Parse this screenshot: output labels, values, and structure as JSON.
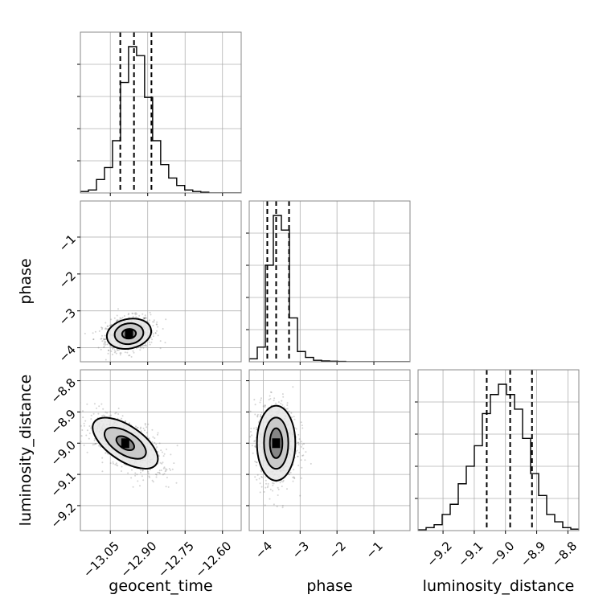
{
  "chart_data": {
    "type": "corner",
    "parameters": [
      "geocent_time",
      "phase",
      "luminosity_distance"
    ],
    "axis_labels": {
      "geocent_time": "geocent_time",
      "phase": "phase",
      "luminosity_distance": "luminosity_distance"
    },
    "ranges": {
      "geocent_time": [
        -13.17,
        -12.525
      ],
      "phase": [
        -4.38,
        -0.02
      ],
      "luminosity_distance": [
        -9.28,
        -8.765
      ]
    },
    "ticks": {
      "geocent_time": [
        -13.05,
        -12.9,
        -12.75,
        -12.6
      ],
      "phase": [
        -4,
        -3,
        -2,
        -1
      ],
      "luminosity_distance": [
        -9.2,
        -9.1,
        -9.0,
        -8.9,
        -8.8
      ]
    },
    "tick_labels": {
      "geocent_time": [
        "−13.05",
        "−12.90",
        "−12.75",
        "−12.60"
      ],
      "phase": [
        "−4",
        "−3",
        "−2",
        "−1"
      ],
      "luminosity_distance": [
        "−9.2",
        "−9.1",
        "−9.0",
        "−8.9",
        "−8.8"
      ]
    },
    "grid": true,
    "histograms": {
      "geocent_time": {
        "bin_start": -13.17,
        "bin_width": 0.0322,
        "counts": [
          0.01,
          0.02,
          0.09,
          0.17,
          0.35,
          0.74,
          0.98,
          0.92,
          0.64,
          0.35,
          0.19,
          0.1,
          0.05,
          0.02,
          0.01,
          0.005,
          0,
          0,
          0,
          0
        ],
        "quantiles": [
          -13.01,
          -12.955,
          -12.885
        ]
      },
      "phase": {
        "bin_start": -4.38,
        "bin_width": 0.218,
        "counts": [
          0.02,
          0.1,
          0.66,
          1.0,
          0.9,
          0.3,
          0.07,
          0.03,
          0.01,
          0.006,
          0.004,
          0.002,
          0,
          0,
          0,
          0,
          0,
          0,
          0,
          0
        ],
        "quantiles": [
          -3.89,
          -3.65,
          -3.3
        ]
      },
      "luminosity_distance": {
        "bin_start": -9.28,
        "bin_width": 0.02575,
        "counts": [
          0.005,
          0.02,
          0.04,
          0.11,
          0.18,
          0.32,
          0.44,
          0.58,
          0.8,
          0.93,
          1.0,
          0.93,
          0.83,
          0.63,
          0.39,
          0.24,
          0.11,
          0.06,
          0.02,
          0.01
        ],
        "quantiles": [
          -9.06,
          -8.985,
          -8.915
        ]
      }
    },
    "pairs": [
      {
        "x": "geocent_time",
        "y": "phase",
        "center": [
          -12.975,
          -3.62
        ],
        "contours": [
          {
            "sx": 0.028,
            "sy": 0.13,
            "angle_deg": 5
          },
          {
            "sx": 0.058,
            "sy": 0.28,
            "angle_deg": 8
          },
          {
            "sx": 0.09,
            "sy": 0.4,
            "angle_deg": 12
          }
        ]
      },
      {
        "x": "geocent_time",
        "y": "luminosity_distance",
        "center": [
          -12.99,
          -9.0
        ],
        "contours": [
          {
            "sx": 0.022,
            "sy": 0.032,
            "angle_deg": 58
          },
          {
            "sx": 0.045,
            "sy": 0.075,
            "angle_deg": 58
          },
          {
            "sx": 0.07,
            "sy": 0.12,
            "angle_deg": 56
          }
        ]
      },
      {
        "x": "phase",
        "y": "luminosity_distance",
        "center": [
          -3.65,
          -9.0
        ],
        "contours": [
          {
            "sx": 0.17,
            "sy": 0.048,
            "angle_deg": 0
          },
          {
            "sx": 0.33,
            "sy": 0.082,
            "angle_deg": 0
          },
          {
            "sx": 0.52,
            "sy": 0.12,
            "angle_deg": 0
          }
        ]
      }
    ]
  }
}
